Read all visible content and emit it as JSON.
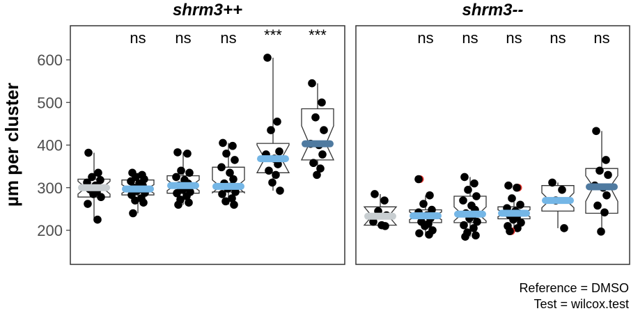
{
  "chart_data": {
    "type": "boxplot",
    "ylabel": "µm per cluster",
    "ylim": [
      120,
      680
    ],
    "yticks": [
      200,
      300,
      400,
      500,
      600
    ],
    "notched": true,
    "colors": {
      "reference": "#c8ced1",
      "light": "#74b6e6",
      "dark": "#4f7aa0",
      "outlier": "#e8302a",
      "point": "#000000",
      "box_line": "#333333",
      "frame": "#333333"
    },
    "caption": [
      "Reference = DMSO",
      "Test = wilcox.test"
    ],
    "panels": [
      {
        "title": "shrm3++",
        "groups": [
          {
            "median": 300,
            "q1": 278,
            "q3": 320,
            "notch_lo": 285,
            "notch_hi": 315,
            "whisker_lo": 225,
            "whisker_hi": 382,
            "color": "reference",
            "sig": "",
            "points": [
              382,
              335,
              325,
              318,
              312,
              305,
              300,
              296,
              290,
              285,
              278,
              262,
              225
            ],
            "outliers": []
          },
          {
            "median": 297,
            "q1": 283,
            "q3": 318,
            "notch_lo": 287,
            "notch_hi": 307,
            "whisker_lo": 240,
            "whisker_hi": 335,
            "color": "light",
            "sig": "ns",
            "points": [
              335,
              330,
              325,
              320,
              315,
              310,
              305,
              300,
              297,
              293,
              288,
              283,
              275,
              270,
              265,
              240
            ],
            "outliers": []
          },
          {
            "median": 305,
            "q1": 287,
            "q3": 328,
            "notch_lo": 293,
            "notch_hi": 318,
            "whisker_lo": 260,
            "whisker_hi": 383,
            "color": "light",
            "sig": "ns",
            "points": [
              383,
              380,
              340,
              335,
              325,
              318,
              310,
              305,
              300,
              295,
              290,
              287,
              280,
              272,
              265,
              260
            ],
            "outliers": []
          },
          {
            "median": 303,
            "q1": 290,
            "q3": 348,
            "notch_lo": 288,
            "notch_hi": 318,
            "whisker_lo": 260,
            "whisker_hi": 405,
            "color": "light",
            "sig": "ns",
            "points": [
              405,
              398,
              380,
              365,
              348,
              335,
              320,
              310,
              303,
              298,
              290,
              285,
              275,
              268,
              260
            ],
            "outliers": []
          },
          {
            "median": 368,
            "q1": 335,
            "q3": 404,
            "notch_lo": 335,
            "notch_hi": 400,
            "whisker_lo": 293,
            "whisker_hi": 605,
            "color": "light",
            "sig": "***",
            "points": [
              605,
              455,
              435,
              385,
              378,
              368,
              355,
              340,
              330,
              312,
              293
            ],
            "outliers": []
          },
          {
            "median": 403,
            "q1": 365,
            "q3": 485,
            "notch_lo": 365,
            "notch_hi": 445,
            "whisker_lo": 330,
            "whisker_hi": 545,
            "color": "dark",
            "sig": "***",
            "points": [
              545,
              500,
              465,
              435,
              403,
              400,
              378,
              358,
              345,
              330
            ],
            "outliers": []
          }
        ]
      },
      {
        "title": "shrm3--",
        "groups": [
          {
            "median": 233,
            "q1": 212,
            "q3": 255,
            "notch_lo": 212,
            "notch_hi": 255,
            "whisker_lo": 210,
            "whisker_hi": 285,
            "color": "reference",
            "sig": "",
            "points": [
              285,
              270,
              245,
              235,
              220,
              212,
              210
            ],
            "outliers": []
          },
          {
            "median": 234,
            "q1": 218,
            "q3": 248,
            "notch_lo": 225,
            "notch_hi": 243,
            "whisker_lo": 190,
            "whisker_hi": 282,
            "color": "light",
            "sig": "ns",
            "points": [
              320,
              282,
              262,
              248,
              242,
              235,
              228,
              220,
              215,
              210,
              200,
              193,
              190
            ],
            "outliers": [
              320
            ]
          },
          {
            "median": 238,
            "q1": 218,
            "q3": 280,
            "notch_lo": 222,
            "notch_hi": 255,
            "whisker_lo": 185,
            "whisker_hi": 325,
            "color": "light",
            "sig": "ns",
            "points": [
              325,
              310,
              295,
              280,
              270,
              258,
              248,
              240,
              235,
              228,
              220,
              212,
              205,
              195,
              188,
              185
            ],
            "outliers": []
          },
          {
            "median": 240,
            "q1": 227,
            "q3": 255,
            "notch_lo": 232,
            "notch_hi": 248,
            "whisker_lo": 205,
            "whisker_hi": 280,
            "color": "light",
            "sig": "ns",
            "points": [
              305,
              300,
              275,
              260,
              252,
              245,
              240,
              235,
              230,
              225,
              218,
              210,
              205,
              198
            ],
            "outliers": [
              300,
              198
            ]
          },
          {
            "median": 270,
            "q1": 245,
            "q3": 305,
            "notch_lo": 253,
            "notch_hi": 288,
            "whisker_lo": 205,
            "whisker_hi": 312,
            "color": "light",
            "sig": "ns",
            "points": [
              312,
              295,
              270,
              205
            ],
            "outliers": []
          },
          {
            "median": 302,
            "q1": 240,
            "q3": 345,
            "notch_lo": 268,
            "notch_hi": 328,
            "whisker_lo": 197,
            "whisker_hi": 433,
            "color": "dark",
            "sig": "ns",
            "points": [
              433,
              365,
              340,
              330,
              305,
              300,
              282,
              258,
              242,
              197
            ],
            "outliers": []
          }
        ]
      }
    ]
  }
}
